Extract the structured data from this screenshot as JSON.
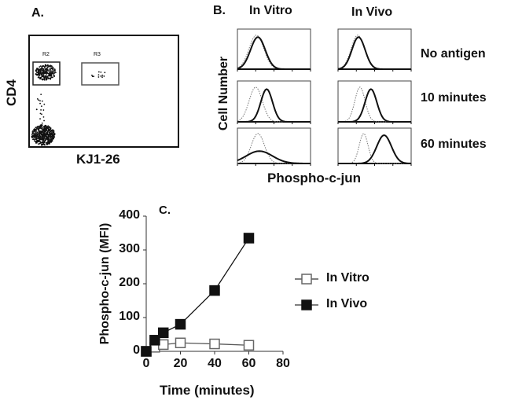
{
  "panel_a": {
    "label": "A.",
    "ylabel": "CD4",
    "xlabel": "KJ1-26",
    "gates": [
      "R2",
      "R3"
    ]
  },
  "panel_b": {
    "label": "B.",
    "columns": [
      "In Vitro",
      "In Vivo"
    ],
    "rows": [
      "No antigen",
      "10 minutes",
      "60 minutes"
    ],
    "ylabel": "Cell Number",
    "xlabel": "Phospho-c-jun"
  },
  "chart_data": {
    "label": "C.",
    "type": "line",
    "xlabel": "Time (minutes)",
    "ylabel": "Phospho-c-jun (MFI)",
    "xlim": [
      0,
      80
    ],
    "ylim": [
      0,
      400
    ],
    "xticks": [
      "0",
      "20",
      "40",
      "60",
      "80"
    ],
    "yticks": [
      "0",
      "100",
      "200",
      "300",
      "400"
    ],
    "legend_position": "right",
    "series": [
      {
        "name": "In Vitro",
        "marker": "open-square",
        "x": [
          0,
          5,
          10,
          20,
          40,
          60
        ],
        "y": [
          0,
          12,
          20,
          25,
          22,
          18
        ]
      },
      {
        "name": "In Vivo",
        "marker": "filled-square",
        "x": [
          0,
          5,
          10,
          20,
          40,
          60
        ],
        "y": [
          0,
          33,
          55,
          80,
          180,
          335
        ]
      }
    ]
  }
}
